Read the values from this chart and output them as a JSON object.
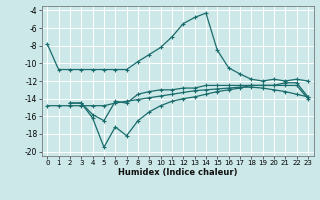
{
  "bg_color": "#cce8e8",
  "grid_color": "#b0d4d4",
  "line_color": "#1a6b6b",
  "xlabel": "Humidex (Indice chaleur)",
  "xlim": [
    -0.5,
    23.5
  ],
  "ylim": [
    -20.5,
    -3.5
  ],
  "yticks": [
    -20,
    -18,
    -16,
    -14,
    -12,
    -10,
    -8,
    -6,
    -4
  ],
  "xticks": [
    0,
    1,
    2,
    3,
    4,
    5,
    6,
    7,
    8,
    9,
    10,
    11,
    12,
    13,
    14,
    15,
    16,
    17,
    18,
    19,
    20,
    21,
    22,
    23
  ],
  "xtick_labels": [
    "0",
    "1",
    "2",
    "3",
    "4",
    "5",
    "6",
    "7",
    "8",
    "9",
    "10",
    "11",
    "12",
    "13",
    "14",
    "15",
    "16",
    "17",
    "18",
    "19",
    "20",
    "21",
    "22",
    "23"
  ],
  "line1_x": [
    0,
    1,
    2,
    3,
    4,
    5,
    6,
    7,
    8,
    9,
    10,
    11,
    12,
    13,
    14,
    15,
    16,
    17,
    18,
    19,
    20,
    21,
    22,
    23
  ],
  "line1_y": [
    -7.8,
    -10.7,
    -10.7,
    -10.7,
    -10.7,
    -10.7,
    -10.7,
    -10.7,
    -9.8,
    -9.0,
    -8.2,
    -7.0,
    -5.5,
    -4.8,
    -4.3,
    -8.5,
    -10.5,
    -11.2,
    -11.8,
    -12.0,
    -11.8,
    -12.0,
    -11.8,
    -12.0
  ],
  "line2_x": [
    2,
    3,
    4,
    5,
    6,
    7,
    8,
    9,
    10,
    11,
    12,
    13,
    14,
    15,
    16,
    17,
    18,
    19,
    20,
    21,
    22,
    23
  ],
  "line2_y": [
    -14.5,
    -14.5,
    -15.8,
    -16.5,
    -14.3,
    -14.5,
    -13.5,
    -13.2,
    -13.0,
    -13.0,
    -12.8,
    -12.8,
    -12.5,
    -12.5,
    -12.5,
    -12.5,
    -12.5,
    -12.5,
    -12.5,
    -12.2,
    -12.2,
    -13.8
  ],
  "line3_x": [
    2,
    3,
    4,
    5,
    6,
    7,
    8,
    9,
    10,
    11,
    12,
    13,
    14,
    15,
    16,
    17,
    18,
    19,
    20,
    21,
    22,
    23
  ],
  "line3_y": [
    -14.5,
    -14.5,
    -16.2,
    -19.5,
    -17.2,
    -18.2,
    -16.5,
    -15.5,
    -14.8,
    -14.3,
    -14.0,
    -13.8,
    -13.5,
    -13.2,
    -13.0,
    -12.8,
    -12.5,
    -12.5,
    -12.5,
    -12.5,
    -12.5,
    -14.0
  ],
  "line4_x": [
    0,
    1,
    2,
    3,
    4,
    5,
    6,
    7,
    8,
    9,
    10,
    11,
    12,
    13,
    14,
    15,
    16,
    17,
    18,
    19,
    20,
    21,
    22,
    23
  ],
  "line4_y": [
    -14.8,
    -14.8,
    -14.8,
    -14.8,
    -14.8,
    -14.8,
    -14.5,
    -14.3,
    -14.1,
    -13.9,
    -13.7,
    -13.5,
    -13.3,
    -13.1,
    -13.0,
    -12.9,
    -12.8,
    -12.7,
    -12.7,
    -12.8,
    -13.0,
    -13.2,
    -13.5,
    -13.8
  ]
}
